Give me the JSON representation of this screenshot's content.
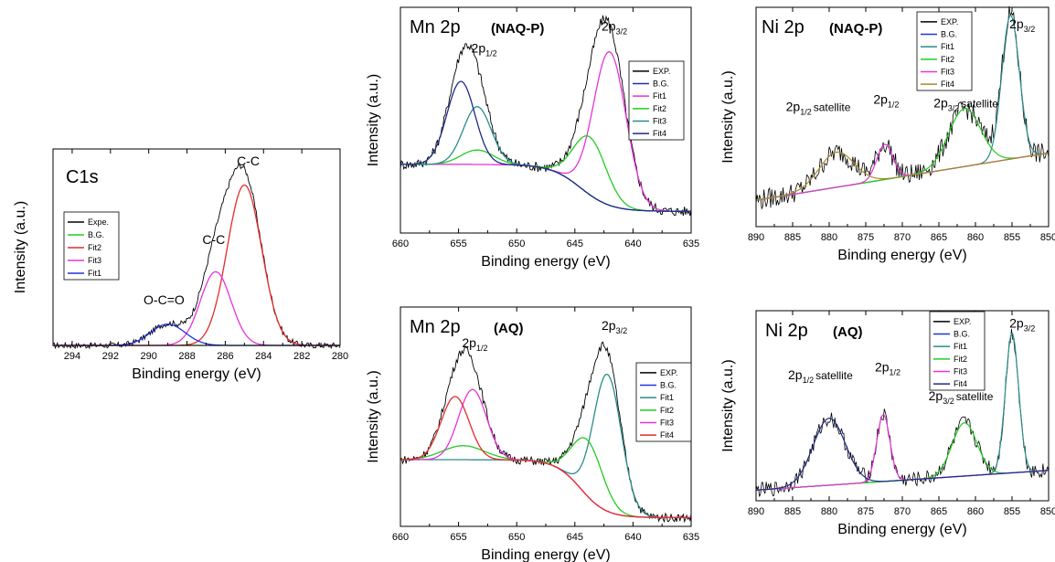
{
  "chart_data": [
    {
      "id": "c1s",
      "type": "line",
      "title": "C1s",
      "title_suffix": "",
      "xlabel": "Binding energy (eV)",
      "ylabel": "Intensity (a.u.)",
      "xlim": [
        295,
        280
      ],
      "xticks": [
        294,
        292,
        290,
        288,
        286,
        284,
        282,
        280
      ],
      "ylim": [
        0,
        1.2
      ],
      "legend_position": "middle-left",
      "legend": [
        "Expe.",
        "B.G.",
        "Fit2",
        "Fit3",
        "Fit1"
      ],
      "annotations": [
        {
          "text": "C-C",
          "x": 284.8,
          "y": 1.1
        },
        {
          "text": "C-C",
          "x": 286.6,
          "y": 0.62
        },
        {
          "text": "O-C=O",
          "x": 289.2,
          "y": 0.25
        }
      ],
      "series": [
        {
          "name": "Expe.",
          "color": "#000000",
          "width": 0.9,
          "noise": 0.018,
          "components": [
            [
              0,
              285.0,
              0.9,
              1.0
            ],
            [
              0,
              286.5,
              0.8,
              0.46
            ],
            [
              0,
              289.0,
              0.9,
              0.13
            ]
          ]
        },
        {
          "name": "B.G.",
          "color": "#22cc22",
          "width": 1.2,
          "noise": 0,
          "components": []
        },
        {
          "name": "Fit2",
          "color": "#e52b2b",
          "width": 1.3,
          "noise": 0,
          "components": [
            [
              0,
              285.0,
              0.9,
              0.98
            ]
          ]
        },
        {
          "name": "Fit3",
          "color": "#e833d6",
          "width": 1.3,
          "noise": 0,
          "components": [
            [
              0,
              286.5,
              0.8,
              0.45
            ]
          ]
        },
        {
          "name": "Fit1",
          "color": "#2233dd",
          "width": 1.3,
          "noise": 0,
          "components": [
            [
              0,
              289.0,
              0.9,
              0.13
            ]
          ]
        }
      ]
    },
    {
      "id": "mn-naqp",
      "type": "line",
      "title": "Mn 2p",
      "title_suffix": "(NAQ-P)",
      "xlabel": "Binding energy (eV)",
      "ylabel": "Intensity (a.u.)",
      "xlim": [
        660,
        635
      ],
      "xticks": [
        660,
        655,
        650,
        645,
        640,
        635
      ],
      "ylim": [
        0,
        1.25
      ],
      "legend_position": "top-right",
      "legend": [
        "EXP.",
        "B.G.",
        "Fit1",
        "Fit2",
        "Fit3",
        "Fit4"
      ],
      "annotations": [
        {
          "text": "2p",
          "sub": "1/2",
          "x": 652.8,
          "y": 1.0
        },
        {
          "text": "2p",
          "sub": "3/2",
          "x": 641.6,
          "y": 1.12
        }
      ],
      "series": [
        {
          "name": "EXP.",
          "color": "#000000",
          "width": 0.9,
          "noise": 0.028,
          "components": [
            [
              2,
              0.12,
              0.38,
              644.5,
              1.3
            ],
            [
              0,
              642.0,
              1.4,
              0.85
            ],
            [
              0,
              643.7,
              1.4,
              0.32
            ],
            [
              0,
              654.8,
              1.2,
              0.46
            ],
            [
              0,
              653.4,
              1.2,
              0.32
            ]
          ]
        },
        {
          "name": "B.G.",
          "color": "#2233aa",
          "width": 1.1,
          "noise": 0,
          "components": [
            [
              2,
              0.12,
              0.38,
              644.5,
              1.3
            ]
          ]
        },
        {
          "name": "Fit1",
          "color": "#e833d6",
          "width": 1.3,
          "noise": 0,
          "components": [
            [
              2,
              0.12,
              0.38,
              644.5,
              1.3
            ],
            [
              0,
              642.0,
              1.4,
              0.85
            ]
          ]
        },
        {
          "name": "Fit2",
          "color": "#22cc22",
          "width": 1.3,
          "noise": 0,
          "components": [
            [
              2,
              0.12,
              0.38,
              644.5,
              1.3
            ],
            [
              0,
              643.7,
              1.4,
              0.32
            ],
            [
              0,
              653.4,
              1.4,
              0.08
            ]
          ]
        },
        {
          "name": "Fit3",
          "color": "#2a8c8c",
          "width": 1.3,
          "noise": 0,
          "components": [
            [
              2,
              0.12,
              0.38,
              644.5,
              1.3
            ],
            [
              0,
              653.4,
              1.2,
              0.32
            ]
          ]
        },
        {
          "name": "Fit4",
          "color": "#1f2b88",
          "width": 1.3,
          "noise": 0,
          "components": [
            [
              2,
              0.12,
              0.38,
              644.5,
              1.3
            ],
            [
              0,
              654.8,
              1.2,
              0.46
            ]
          ]
        }
      ]
    },
    {
      "id": "ni-naqp",
      "type": "line",
      "title": "Ni 2p",
      "title_suffix": "(NAQ-P)",
      "xlabel": "Binding energy (eV)",
      "ylabel": "Intensity (a.u.)",
      "xlim": [
        890,
        850
      ],
      "xticks": [
        890,
        885,
        880,
        875,
        870,
        865,
        860,
        855,
        850
      ],
      "ylim": [
        0,
        1.25
      ],
      "legend_position": "top-left",
      "legend": [
        "EXP.",
        "B.G.",
        "Fit1",
        "Fit2",
        "Fit3",
        "Fit4"
      ],
      "annotations": [
        {
          "text": "2p",
          "sub": "3/2",
          "x": 853.6,
          "y": 1.13
        },
        {
          "text": "2p",
          "sub": "1/2",
          "x": 872.2,
          "y": 0.7
        },
        {
          "text": "2p",
          "sub": "1/2",
          "suffix": "satellite",
          "x": 881.5,
          "y": 0.66
        },
        {
          "text": "2p",
          "sub": "3/2",
          "suffix": "satellite",
          "x": 861.3,
          "y": 0.68
        }
      ],
      "series": [
        {
          "name": "EXP.",
          "color": "#000000",
          "width": 0.8,
          "noise": 0.06,
          "components": [
            [
              1,
              0.42,
              0.15
            ],
            [
              0,
              855.2,
              1.2,
              0.82
            ],
            [
              0,
              861.5,
              2.2,
              0.33
            ],
            [
              0,
              872.4,
              1.1,
              0.2
            ],
            [
              0,
              879.0,
              2.4,
              0.2
            ]
          ]
        },
        {
          "name": "B.G.",
          "color": "#2233dd",
          "width": 1.0,
          "noise": 0,
          "components": [
            [
              1,
              0.42,
              0.15
            ]
          ]
        },
        {
          "name": "Fit1",
          "color": "#2a8c8c",
          "width": 1.2,
          "noise": 0,
          "components": [
            [
              1,
              0.42,
              0.15
            ],
            [
              0,
              855.2,
              1.2,
              0.82
            ]
          ]
        },
        {
          "name": "Fit2",
          "color": "#22cc22",
          "width": 1.2,
          "noise": 0,
          "components": [
            [
              1,
              0.42,
              0.15
            ],
            [
              0,
              861.5,
              2.2,
              0.33
            ]
          ]
        },
        {
          "name": "Fit3",
          "color": "#e833d6",
          "width": 1.2,
          "noise": 0,
          "components": [
            [
              1,
              0.42,
              0.15
            ],
            [
              0,
              872.4,
              1.1,
              0.2
            ]
          ]
        },
        {
          "name": "Fit4",
          "color": "#a68a2a",
          "width": 1.2,
          "noise": 0,
          "components": [
            [
              1,
              0.42,
              0.15
            ],
            [
              0,
              879.0,
              2.4,
              0.2
            ]
          ]
        }
      ]
    },
    {
      "id": "mn-aq",
      "type": "line",
      "title": "Mn 2p",
      "title_suffix": "(AQ)",
      "xlabel": "Binding energy (eV)",
      "ylabel": "Intensity (a.u.)",
      "xlim": [
        660,
        635
      ],
      "xticks": [
        660,
        655,
        650,
        645,
        640,
        635
      ],
      "ylim": [
        0,
        1.25
      ],
      "legend_position": "right",
      "legend": [
        "EXP.",
        "B.G.",
        "Fit1",
        "Fit2",
        "Fit3",
        "Fit4"
      ],
      "annotations": [
        {
          "text": "2p",
          "sub": "1/2",
          "x": 653.6,
          "y": 1.02
        },
        {
          "text": "2p",
          "sub": "3/2",
          "x": 641.6,
          "y": 1.12
        }
      ],
      "series": [
        {
          "name": "EXP.",
          "color": "#000000",
          "width": 0.9,
          "noise": 0.024,
          "components": [
            [
              2,
              0.05,
              0.38,
              644.5,
              1.1
            ],
            [
              0,
              642.2,
              1.2,
              0.78
            ],
            [
              0,
              643.9,
              1.3,
              0.32
            ],
            [
              0,
              655.3,
              1.2,
              0.36
            ],
            [
              0,
              653.8,
              1.2,
              0.4
            ]
          ]
        },
        {
          "name": "B.G.",
          "color": "#2233dd",
          "width": 1.0,
          "noise": 0,
          "components": [
            [
              2,
              0.05,
              0.38,
              644.5,
              1.1
            ]
          ]
        },
        {
          "name": "Fit1",
          "color": "#2a8c8c",
          "width": 1.3,
          "noise": 0,
          "components": [
            [
              2,
              0.05,
              0.38,
              644.5,
              1.1
            ],
            [
              0,
              642.2,
              1.2,
              0.78
            ]
          ]
        },
        {
          "name": "Fit2",
          "color": "#22cc22",
          "width": 1.3,
          "noise": 0,
          "components": [
            [
              2,
              0.05,
              0.38,
              644.5,
              1.1
            ],
            [
              0,
              643.9,
              1.3,
              0.32
            ],
            [
              0,
              654.6,
              1.8,
              0.08
            ]
          ]
        },
        {
          "name": "Fit3",
          "color": "#e833d6",
          "width": 1.3,
          "noise": 0,
          "components": [
            [
              2,
              0.05,
              0.38,
              644.5,
              1.1
            ],
            [
              0,
              653.8,
              1.2,
              0.4
            ]
          ]
        },
        {
          "name": "Fit4",
          "color": "#e52b2b",
          "width": 1.3,
          "noise": 0,
          "components": [
            [
              2,
              0.05,
              0.38,
              644.5,
              1.1
            ],
            [
              0,
              655.3,
              1.2,
              0.36
            ]
          ]
        }
      ]
    },
    {
      "id": "ni-aq",
      "type": "line",
      "title": "Ni 2p",
      "title_suffix": "(AQ)",
      "xlabel": "Binding energy (eV)",
      "ylabel": "Intensity (a.u.)",
      "xlim": [
        890,
        850
      ],
      "xticks": [
        890,
        885,
        880,
        875,
        870,
        865,
        860,
        855,
        850
      ],
      "ylim": [
        0,
        1.25
      ],
      "legend_position": "top-right",
      "legend": [
        "EXP.",
        "B.G.",
        "Fit1",
        "Fit2",
        "Fit3",
        "Fit4"
      ],
      "annotations": [
        {
          "text": "2p",
          "sub": "3/2",
          "x": 853.6,
          "y": 1.14
        },
        {
          "text": "2p",
          "sub": "1/2",
          "x": 872.0,
          "y": 0.85
        },
        {
          "text": "2p",
          "sub": "1/2",
          "suffix": "satellite",
          "x": 881.2,
          "y": 0.8
        },
        {
          "text": "2p",
          "sub": "3/2",
          "suffix": "satellite",
          "x": 862.0,
          "y": 0.66
        }
      ],
      "series": [
        {
          "name": "EXP.",
          "color": "#000000",
          "width": 0.8,
          "noise": 0.05,
          "components": [
            [
              1,
              0.2,
              0.07
            ],
            [
              0,
              855.0,
              0.9,
              0.92
            ],
            [
              0,
              861.5,
              1.7,
              0.35
            ],
            [
              0,
              872.6,
              0.9,
              0.44
            ],
            [
              0,
              880.0,
              2.2,
              0.44
            ]
          ]
        },
        {
          "name": "B.G.",
          "color": "#2233dd",
          "width": 1.1,
          "noise": 0,
          "components": [
            [
              1,
              0.2,
              0.07
            ]
          ]
        },
        {
          "name": "Fit1",
          "color": "#2a8c8c",
          "width": 1.2,
          "noise": 0,
          "components": [
            [
              1,
              0.2,
              0.07
            ],
            [
              0,
              855.0,
              0.9,
              0.92
            ]
          ]
        },
        {
          "name": "Fit2",
          "color": "#22cc22",
          "width": 1.2,
          "noise": 0,
          "components": [
            [
              1,
              0.2,
              0.07
            ],
            [
              0,
              861.5,
              1.7,
              0.35
            ]
          ]
        },
        {
          "name": "Fit3",
          "color": "#e833d6",
          "width": 1.2,
          "noise": 0,
          "components": [
            [
              1,
              0.2,
              0.07
            ],
            [
              0,
              872.6,
              0.9,
              0.44
            ]
          ]
        },
        {
          "name": "Fit4",
          "color": "#1f2b88",
          "width": 1.2,
          "noise": 0,
          "components": [
            [
              1,
              0.2,
              0.07
            ],
            [
              0,
              880.0,
              2.2,
              0.44
            ]
          ]
        }
      ]
    }
  ]
}
